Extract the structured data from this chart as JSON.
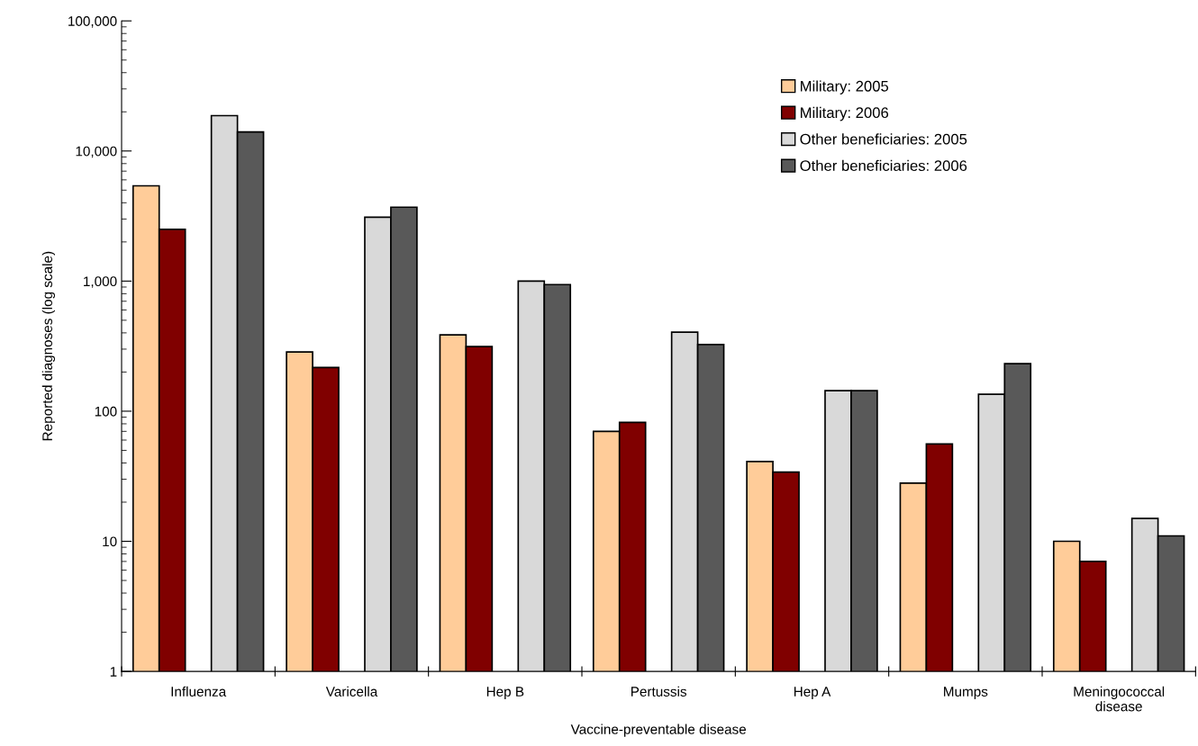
{
  "chart_data": {
    "type": "bar",
    "categories": [
      "Influenza",
      "Varicella",
      "Hep B",
      "Pertussis",
      "Hep A",
      "Mumps",
      "Meningococcal\ndisease"
    ],
    "series": [
      {
        "name": "Military: 2005",
        "color": "#ffcc99",
        "values": [
          5400,
          285,
          386,
          70,
          41,
          28,
          10
        ]
      },
      {
        "name": "Military: 2006",
        "color": "#800000",
        "values": [
          2500,
          217,
          314,
          82,
          34,
          56,
          7
        ]
      },
      {
        "name": "Other beneficiaries: 2005",
        "color": "#d9d9d9",
        "values": [
          18700,
          3100,
          1000,
          405,
          144,
          135,
          15
        ]
      },
      {
        "name": "Other beneficiaries: 2006",
        "color": "#595959",
        "values": [
          14000,
          3700,
          940,
          325,
          144,
          232,
          11
        ]
      }
    ],
    "xlabel": "Vaccine-preventable disease",
    "ylabel": "Reported diagnoses (log scale)",
    "log": "y",
    "ylim": [
      1,
      100000
    ],
    "yticks": [
      1,
      10,
      100,
      {
        "value": 1000,
        "label": "1,000"
      },
      {
        "value": 10000,
        "label": "10,000"
      },
      {
        "value": 100000,
        "label": "100,000"
      }
    ],
    "legend": "top right",
    "grid": false
  }
}
